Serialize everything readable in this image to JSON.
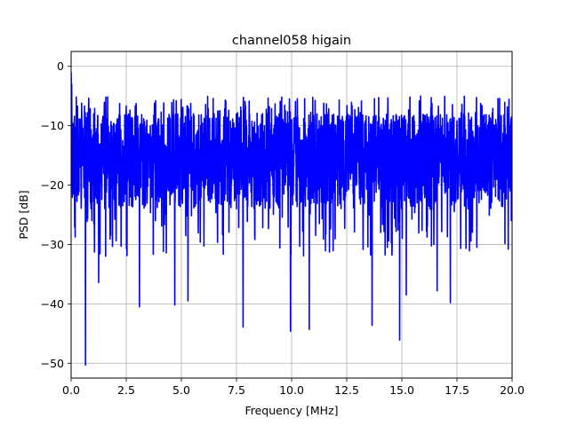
{
  "chart_data": {
    "type": "line",
    "title": "channel058 higain",
    "xlabel": "Frequency [MHz]",
    "ylabel": "PSD [dB]",
    "xlim": [
      0,
      20
    ],
    "ylim": [
      -52.5,
      2.5
    ],
    "xticks": [
      0,
      2.5,
      5,
      7.5,
      10,
      12.5,
      15,
      17.5,
      20
    ],
    "xtick_labels": [
      "0.0",
      "2.5",
      "5.0",
      "7.5",
      "10.0",
      "12.5",
      "15.0",
      "17.5",
      "20.0"
    ],
    "yticks": [
      0,
      -10,
      -20,
      -30,
      -40,
      -50
    ],
    "ytick_labels": [
      "0",
      "−10",
      "−20",
      "−30",
      "−40",
      "−50"
    ],
    "grid": true,
    "series": [
      {
        "color": "#0000ff",
        "typical_range_db": [
          -24,
          -8
        ],
        "notable_points": [
          {
            "x": 0.0,
            "y": -1
          },
          {
            "x": 0.65,
            "y": -50.3
          },
          {
            "x": 1.25,
            "y": -36.4
          },
          {
            "x": 3.1,
            "y": -40.5
          },
          {
            "x": 4.7,
            "y": -40.2
          },
          {
            "x": 5.3,
            "y": -39.5
          },
          {
            "x": 7.8,
            "y": -43.9
          },
          {
            "x": 9.95,
            "y": -44.6
          },
          {
            "x": 10.8,
            "y": -44.3
          },
          {
            "x": 13.65,
            "y": -43.6
          },
          {
            "x": 14.9,
            "y": -46.1
          },
          {
            "x": 15.2,
            "y": -38.5
          },
          {
            "x": 16.6,
            "y": -37.8
          },
          {
            "x": 17.2,
            "y": -39.8
          }
        ]
      }
    ]
  }
}
